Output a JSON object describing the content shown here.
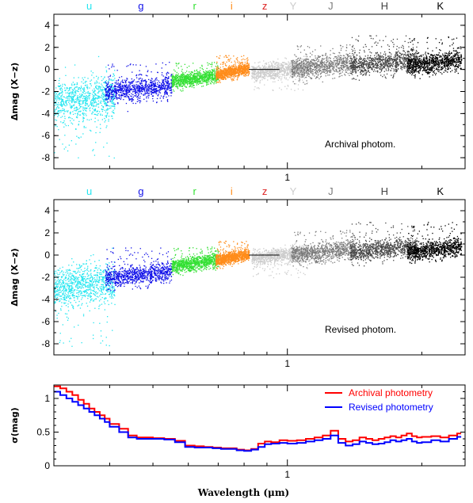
{
  "chart_data": [
    {
      "type": "scatter",
      "panel": "top",
      "ylabel": "Δmag (X−z)",
      "ylim": [
        -9,
        5
      ],
      "y_ticks": [
        "4",
        "2",
        "0",
        "-2",
        "-4",
        "-6",
        "-8"
      ],
      "x_scale": "log",
      "x_tick_label": "1",
      "annotation": "Archival photom.",
      "bands": [
        {
          "label": "u",
          "color": "#22e6f0",
          "center_um": 0.36,
          "x_range_um": [
            0.3,
            0.41
          ],
          "y_mean": -2.7,
          "y_spread": 1.8,
          "outlier_tail": -5.5
        },
        {
          "label": "g",
          "color": "#1010e8",
          "center_um": 0.47,
          "x_range_um": [
            0.39,
            0.55
          ],
          "y_mean": -1.8,
          "y_spread": 0.9,
          "outlier_tail": 2.5
        },
        {
          "label": "r",
          "color": "#33e033",
          "center_um": 0.62,
          "x_range_um": [
            0.55,
            0.7
          ],
          "y_mean": -0.8,
          "y_spread": 0.6,
          "outlier_tail": 1.5
        },
        {
          "label": "i",
          "color": "#ff8c1a",
          "center_um": 0.75,
          "x_range_um": [
            0.69,
            0.82
          ],
          "y_mean": -0.2,
          "y_spread": 0.5,
          "outlier_tail": 1.5
        },
        {
          "label": "z",
          "color": "#dd2222",
          "center_um": 0.89,
          "x_range_um": [
            0.82,
            0.96
          ],
          "y_mean": 0.0,
          "y_spread": 0.05,
          "outlier_tail": 0
        },
        {
          "label": "Y",
          "color": "#cccccc",
          "center_um": 1.03,
          "x_range_um": [
            0.83,
            1.11
          ],
          "y_mean": 0.0,
          "y_spread": 0.7,
          "outlier_tail": -2.0
        },
        {
          "label": "J",
          "color": "#7a7a7a",
          "center_um": 1.25,
          "x_range_um": [
            1.02,
            1.42
          ],
          "y_mean": 0.3,
          "y_spread": 0.9,
          "outlier_tail": 2.0
        },
        {
          "label": "H",
          "color": "#444444",
          "center_um": 1.65,
          "x_range_um": [
            1.38,
            1.95
          ],
          "y_mean": 0.6,
          "y_spread": 0.9,
          "outlier_tail": 2.5
        },
        {
          "label": "K",
          "color": "#000000",
          "center_um": 2.2,
          "x_range_um": [
            1.85,
            2.45
          ],
          "y_mean": 0.6,
          "y_spread": 0.8,
          "outlier_tail": 2.5
        }
      ]
    },
    {
      "type": "scatter",
      "panel": "middle",
      "ylabel": "Δmag (X−z)",
      "ylim": [
        -9,
        5
      ],
      "y_ticks": [
        "4",
        "2",
        "0",
        "-2",
        "-4",
        "-6",
        "-8"
      ],
      "x_scale": "log",
      "x_tick_label": "1",
      "annotation": "Revised photom.",
      "bands": [
        {
          "label": "u",
          "color": "#22e6f0",
          "center_um": 0.36,
          "x_range_um": [
            0.3,
            0.41
          ],
          "y_mean": -2.7,
          "y_spread": 1.7,
          "outlier_tail": -5.5
        },
        {
          "label": "g",
          "color": "#1010e8",
          "center_um": 0.47,
          "x_range_um": [
            0.39,
            0.55
          ],
          "y_mean": -1.8,
          "y_spread": 0.8,
          "outlier_tail": 2.5
        },
        {
          "label": "r",
          "color": "#33e033",
          "center_um": 0.62,
          "x_range_um": [
            0.55,
            0.7
          ],
          "y_mean": -0.7,
          "y_spread": 0.6,
          "outlier_tail": 1.5
        },
        {
          "label": "i",
          "color": "#ff8c1a",
          "center_um": 0.75,
          "x_range_um": [
            0.69,
            0.82
          ],
          "y_mean": -0.2,
          "y_spread": 0.5,
          "outlier_tail": 1.5
        },
        {
          "label": "z",
          "color": "#dd2222",
          "center_um": 0.89,
          "x_range_um": [
            0.82,
            0.96
          ],
          "y_mean": 0.0,
          "y_spread": 0.05,
          "outlier_tail": 0
        },
        {
          "label": "Y",
          "color": "#cccccc",
          "center_um": 1.03,
          "x_range_um": [
            0.83,
            1.11
          ],
          "y_mean": 0.0,
          "y_spread": 0.6,
          "outlier_tail": -2.0
        },
        {
          "label": "J",
          "color": "#7a7a7a",
          "center_um": 1.25,
          "x_range_um": [
            1.02,
            1.42
          ],
          "y_mean": 0.3,
          "y_spread": 0.8,
          "outlier_tail": 2.0
        },
        {
          "label": "H",
          "color": "#444444",
          "center_um": 1.65,
          "x_range_um": [
            1.38,
            1.95
          ],
          "y_mean": 0.5,
          "y_spread": 0.8,
          "outlier_tail": 2.5
        },
        {
          "label": "K",
          "color": "#000000",
          "center_um": 2.2,
          "x_range_um": [
            1.85,
            2.45
          ],
          "y_mean": 0.5,
          "y_spread": 0.7,
          "outlier_tail": 2.5
        }
      ]
    },
    {
      "type": "line",
      "panel": "bottom",
      "xlabel": "Wavelength (μm)",
      "ylabel": "σ(mag)",
      "ylim": [
        0,
        1.2
      ],
      "y_ticks": [
        "1",
        "0.5",
        "0"
      ],
      "y_tick_values": [
        1,
        0.5,
        0
      ],
      "x_scale": "log",
      "xlim_um": [
        0.3,
        2.5
      ],
      "x_tick_label": "1",
      "legend_position": "top-right",
      "series": [
        {
          "name": "Archival photometry",
          "color": "#ff0000",
          "x_um": [
            0.3,
            0.31,
            0.32,
            0.33,
            0.34,
            0.35,
            0.36,
            0.37,
            0.38,
            0.39,
            0.4,
            0.42,
            0.44,
            0.46,
            0.48,
            0.5,
            0.53,
            0.56,
            0.59,
            0.62,
            0.65,
            0.68,
            0.71,
            0.74,
            0.77,
            0.8,
            0.83,
            0.86,
            0.89,
            0.92,
            0.96,
            1.0,
            1.05,
            1.1,
            1.15,
            1.2,
            1.25,
            1.3,
            1.35,
            1.4,
            1.45,
            1.5,
            1.55,
            1.6,
            1.65,
            1.7,
            1.75,
            1.8,
            1.85,
            1.9,
            1.95,
            2.0,
            2.1,
            2.2,
            2.3,
            2.4
          ],
          "y": [
            1.18,
            1.15,
            1.1,
            1.05,
            0.98,
            0.92,
            0.85,
            0.8,
            0.75,
            0.7,
            0.62,
            0.55,
            0.45,
            0.42,
            0.42,
            0.41,
            0.4,
            0.37,
            0.3,
            0.29,
            0.28,
            0.27,
            0.26,
            0.26,
            0.24,
            0.23,
            0.25,
            0.33,
            0.36,
            0.35,
            0.38,
            0.37,
            0.38,
            0.4,
            0.42,
            0.45,
            0.52,
            0.4,
            0.36,
            0.38,
            0.42,
            0.4,
            0.38,
            0.4,
            0.42,
            0.44,
            0.42,
            0.45,
            0.48,
            0.44,
            0.42,
            0.43,
            0.44,
            0.42,
            0.45,
            0.48
          ]
        },
        {
          "name": "Revised photometry",
          "color": "#0000ff",
          "x_um": [
            0.3,
            0.31,
            0.32,
            0.33,
            0.34,
            0.35,
            0.36,
            0.37,
            0.38,
            0.39,
            0.4,
            0.42,
            0.44,
            0.46,
            0.48,
            0.5,
            0.53,
            0.56,
            0.59,
            0.62,
            0.65,
            0.68,
            0.71,
            0.74,
            0.77,
            0.8,
            0.83,
            0.86,
            0.89,
            0.92,
            0.96,
            1.0,
            1.05,
            1.1,
            1.15,
            1.2,
            1.25,
            1.3,
            1.35,
            1.4,
            1.45,
            1.5,
            1.55,
            1.6,
            1.65,
            1.7,
            1.75,
            1.8,
            1.85,
            1.9,
            1.95,
            2.0,
            2.1,
            2.2,
            2.3,
            2.4
          ],
          "y": [
            1.1,
            1.05,
            1.0,
            0.95,
            0.9,
            0.85,
            0.8,
            0.75,
            0.7,
            0.65,
            0.58,
            0.5,
            0.42,
            0.4,
            0.4,
            0.4,
            0.39,
            0.35,
            0.28,
            0.27,
            0.27,
            0.26,
            0.25,
            0.25,
            0.23,
            0.22,
            0.24,
            0.28,
            0.32,
            0.33,
            0.34,
            0.33,
            0.34,
            0.36,
            0.38,
            0.4,
            0.45,
            0.34,
            0.3,
            0.32,
            0.36,
            0.34,
            0.32,
            0.33,
            0.35,
            0.38,
            0.36,
            0.38,
            0.4,
            0.36,
            0.34,
            0.35,
            0.38,
            0.36,
            0.4,
            0.43
          ]
        }
      ]
    }
  ]
}
